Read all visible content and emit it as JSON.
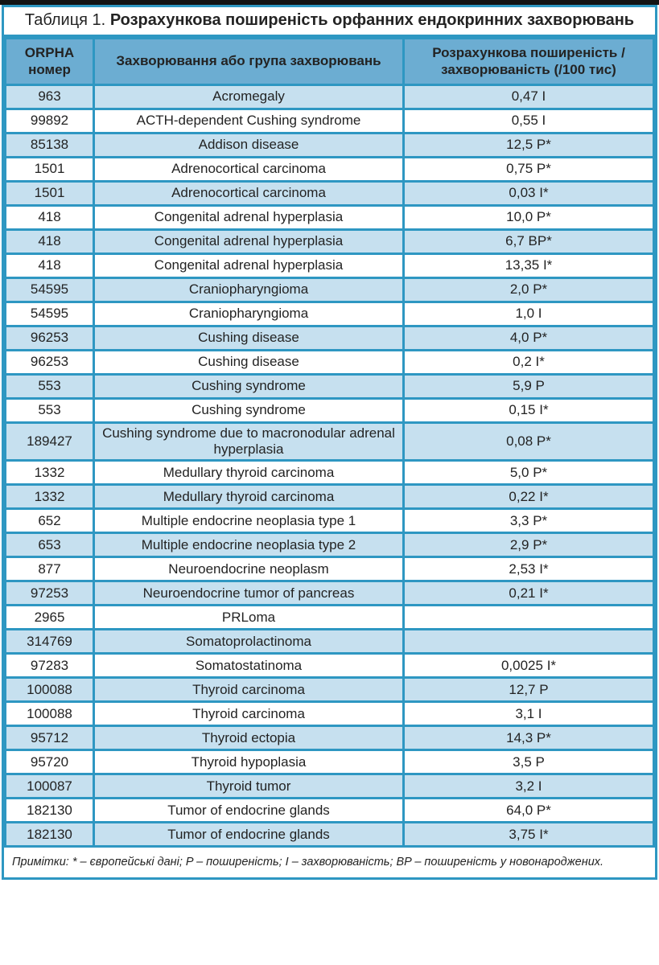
{
  "colors": {
    "border-blue": "#2e97c2",
    "header-bg": "#6cadd2",
    "alt-bg": "#c6e0ef",
    "text": "#232323",
    "strip": "#131313",
    "page-bg": "#ffffff"
  },
  "title": {
    "label": "Таблиця 1.",
    "text": "Розрахункова поширеність орфанних ендокринних захворювань"
  },
  "table": {
    "columns": [
      "ORPHA номер",
      "Захворювання або група захворювань",
      "Розрахункова поширеність / захворюваність (/100 тис)"
    ],
    "rows": [
      {
        "orpha": "963",
        "disease": "Acromegaly",
        "value": "0,47 I"
      },
      {
        "orpha": "99892",
        "disease": "ACTH-dependent Cushing syndrome",
        "value": "0,55 I"
      },
      {
        "orpha": "85138",
        "disease": "Addison disease",
        "value": "12,5 P*"
      },
      {
        "orpha": "1501",
        "disease": "Adrenocortical carcinoma",
        "value": "0,75 P*"
      },
      {
        "orpha": "1501",
        "disease": "Adrenocortical carcinoma",
        "value": "0,03 I*"
      },
      {
        "orpha": "418",
        "disease": "Congenital adrenal hyperplasia",
        "value": "10,0 P*"
      },
      {
        "orpha": "418",
        "disease": "Congenital adrenal hyperplasia",
        "value": "6,7 BP*"
      },
      {
        "orpha": "418",
        "disease": "Congenital adrenal hyperplasia",
        "value": "13,35 I*"
      },
      {
        "orpha": "54595",
        "disease": "Craniopharyngioma",
        "value": "2,0 P*"
      },
      {
        "orpha": "54595",
        "disease": "Craniopharyngioma",
        "value": "1,0 I"
      },
      {
        "orpha": "96253",
        "disease": "Cushing disease",
        "value": "4,0 P*"
      },
      {
        "orpha": "96253",
        "disease": "Cushing disease",
        "value": "0,2 I*"
      },
      {
        "orpha": "553",
        "disease": "Cushing syndrome",
        "value": "5,9 P"
      },
      {
        "orpha": "553",
        "disease": "Cushing syndrome",
        "value": "0,15 I*"
      },
      {
        "orpha": "189427",
        "disease": "Cushing syndrome due to macronodular adrenal hyperplasia",
        "value": "0,08 P*"
      },
      {
        "orpha": "1332",
        "disease": "Medullary thyroid carcinoma",
        "value": "5,0 P*"
      },
      {
        "orpha": "1332",
        "disease": "Medullary thyroid carcinoma",
        "value": "0,22 I*"
      },
      {
        "orpha": "652",
        "disease": "Multiple endocrine neoplasia type 1",
        "value": "3,3 P*"
      },
      {
        "orpha": "653",
        "disease": "Multiple endocrine neoplasia type 2",
        "value": "2,9 P*"
      },
      {
        "orpha": "877",
        "disease": "Neuroendocrine neoplasm",
        "value": "2,53 I*"
      },
      {
        "orpha": "97253",
        "disease": "Neuroendocrine tumor of pancreas",
        "value": "0,21 I*"
      },
      {
        "orpha": "2965",
        "disease": "PRLoma",
        "value": ""
      },
      {
        "orpha": "314769",
        "disease": "Somatoprolactinoma",
        "value": ""
      },
      {
        "orpha": "97283",
        "disease": "Somatostatinoma",
        "value": "0,0025 I*"
      },
      {
        "orpha": "100088",
        "disease": "Thyroid carcinoma",
        "value": "12,7 P"
      },
      {
        "orpha": "100088",
        "disease": "Thyroid carcinoma",
        "value": "3,1 I"
      },
      {
        "orpha": "95712",
        "disease": "Thyroid ectopia",
        "value": "14,3 P*"
      },
      {
        "orpha": "95720",
        "disease": "Thyroid hypoplasia",
        "value": "3,5 P"
      },
      {
        "orpha": "100087",
        "disease": "Thyroid tumor",
        "value": "3,2 I"
      },
      {
        "orpha": "182130",
        "disease": "Tumor of endocrine glands",
        "value": "64,0 P*"
      },
      {
        "orpha": "182130",
        "disease": "Tumor of endocrine glands",
        "value": "3,75 I*"
      }
    ]
  },
  "footer": {
    "note": "Примітки: * – європейські дані; P – поширеність; I – захворюваність; BP – поширеність у новонароджених."
  }
}
